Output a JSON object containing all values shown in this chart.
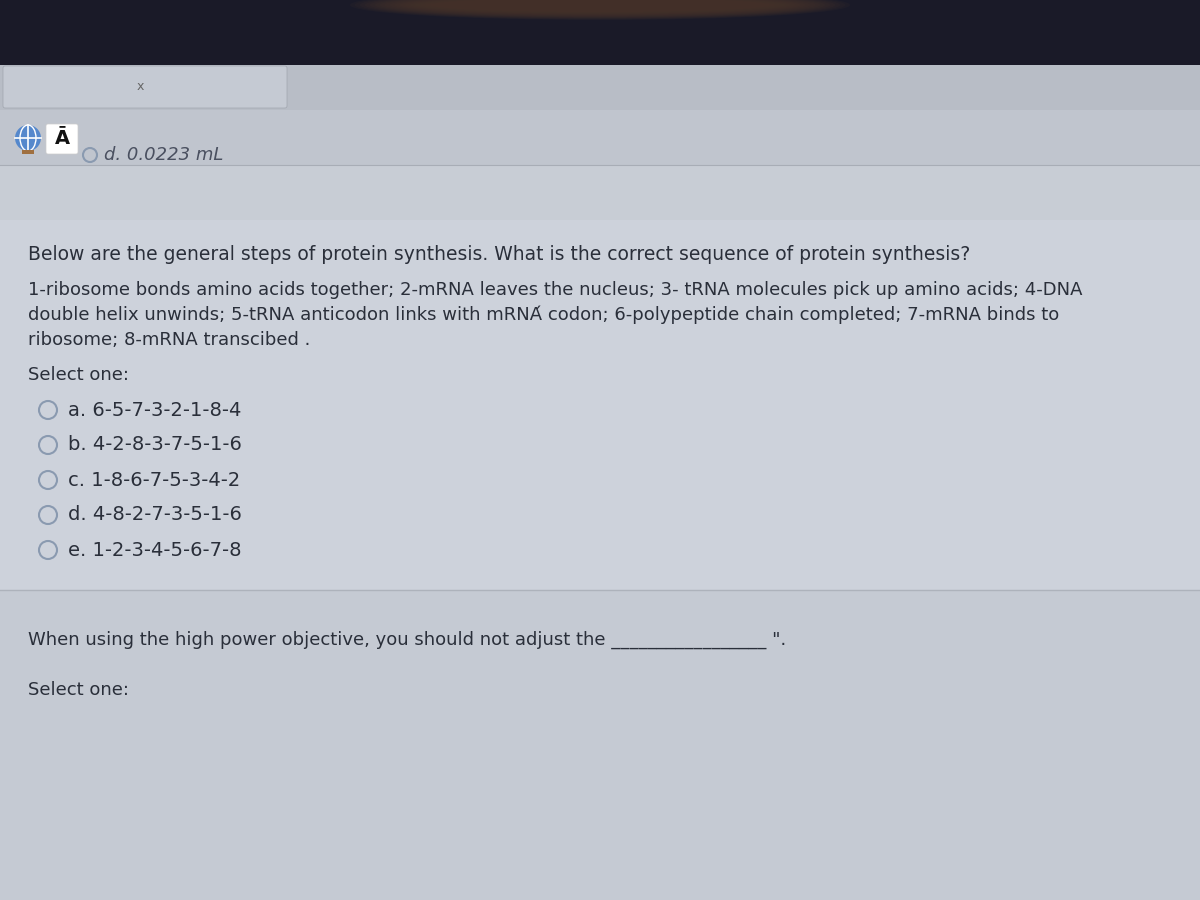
{
  "bg_dark": "#1e1e2a",
  "bg_toolbar": "#b5bac3",
  "bg_addrbar": "#c2c7d0",
  "bg_separator": "#c8cdd6",
  "bg_main": "#cdd2db",
  "bg_bottom": "#c5cad3",
  "header_text": "d. 0.0223 mL",
  "question_intro": "Below are the general steps of protein synthesis. What is the correct sequence of protein synthesis?",
  "line1": "1-ribosome bonds amino acids together; 2-mRNA leaves the nucleus; 3- tRNA molecules pick up amino acids; 4-DNA",
  "line2": "double helix unwinds; 5-tRNA anticodon links with mRNÁ codon; 6-polypeptide chain completed; 7-mRNA binds to",
  "line3": "ribosome; 8-mRNA transcibed .",
  "select_one": "Select one:",
  "options": [
    "a. 6-5-7-3-2-1-8-4",
    "b. 4-2-8-3-7-5-1-6",
    "c. 1-8-6-7-5-3-4-2",
    "d. 4-8-2-7-3-5-1-6",
    "e. 1-2-3-4-5-6-7-8"
  ],
  "bottom_question": "When using the high power objective, you should not adjust the _________________ \".",
  "bottom_select": "Select one:",
  "radio_color": "#8a9ab0",
  "text_color": "#2a2f3a",
  "header_text_color": "#4a5060",
  "globe_color": "#5588cc",
  "tab_bg": "#c0c5ce"
}
